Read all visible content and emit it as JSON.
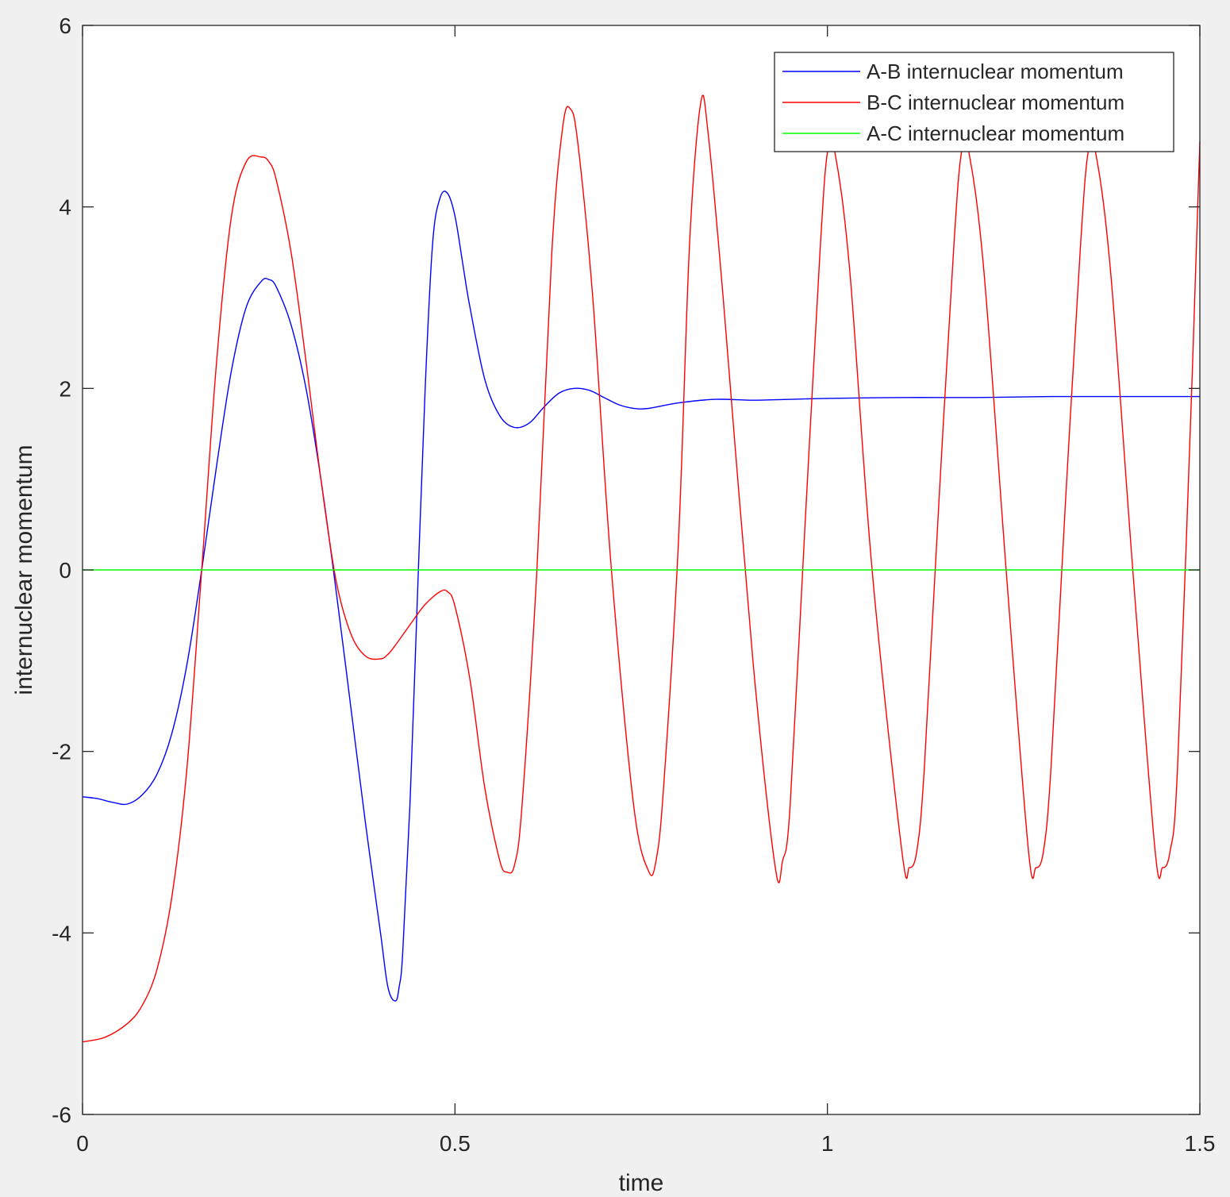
{
  "chart_data": {
    "type": "line",
    "title": "",
    "xlabel": "time",
    "ylabel": "internuclear momentum",
    "xlim": [
      0,
      1.5
    ],
    "ylim": [
      -6,
      6
    ],
    "xticks": [
      0,
      0.5,
      1,
      1.5
    ],
    "xtick_labels": [
      "0",
      "0.5",
      "1",
      "1.5"
    ],
    "yticks": [
      -6,
      -4,
      -2,
      0,
      2,
      4,
      6
    ],
    "ytick_labels": [
      "-6",
      "-4",
      "-2",
      "0",
      "2",
      "4",
      "6"
    ],
    "grid": false,
    "legend_position": "top-right",
    "series": [
      {
        "name": "A-B internuclear momentum",
        "color": "#0000ff",
        "x": [
          0,
          0.02,
          0.04,
          0.06,
          0.08,
          0.1,
          0.12,
          0.14,
          0.16,
          0.18,
          0.2,
          0.22,
          0.24,
          0.25,
          0.26,
          0.28,
          0.3,
          0.32,
          0.34,
          0.36,
          0.38,
          0.4,
          0.41,
          0.42,
          0.425,
          0.43,
          0.44,
          0.45,
          0.46,
          0.47,
          0.48,
          0.49,
          0.5,
          0.51,
          0.52,
          0.54,
          0.56,
          0.58,
          0.6,
          0.62,
          0.64,
          0.66,
          0.68,
          0.7,
          0.72,
          0.74,
          0.76,
          0.8,
          0.85,
          0.9,
          0.95,
          1.0,
          1.1,
          1.2,
          1.3,
          1.4,
          1.5
        ],
        "y": [
          -2.5,
          -2.52,
          -2.56,
          -2.58,
          -2.48,
          -2.25,
          -1.8,
          -1.05,
          0.0,
          1.15,
          2.2,
          2.9,
          3.18,
          3.2,
          3.12,
          2.7,
          2.0,
          1.0,
          -0.2,
          -1.5,
          -2.8,
          -4.0,
          -4.6,
          -4.75,
          -4.6,
          -4.2,
          -2.5,
          -0.2,
          2.0,
          3.6,
          4.1,
          4.15,
          3.9,
          3.4,
          2.9,
          2.1,
          1.7,
          1.57,
          1.62,
          1.8,
          1.95,
          2.0,
          1.98,
          1.9,
          1.82,
          1.78,
          1.78,
          1.84,
          1.88,
          1.87,
          1.88,
          1.89,
          1.9,
          1.9,
          1.91,
          1.91,
          1.91
        ]
      },
      {
        "name": "B-C internuclear momentum",
        "color": "#ff0000",
        "x": [
          0,
          0.03,
          0.06,
          0.08,
          0.1,
          0.12,
          0.14,
          0.16,
          0.18,
          0.2,
          0.22,
          0.24,
          0.25,
          0.26,
          0.28,
          0.3,
          0.32,
          0.34,
          0.36,
          0.38,
          0.4,
          0.41,
          0.42,
          0.44,
          0.46,
          0.48,
          0.49,
          0.5,
          0.52,
          0.54,
          0.56,
          0.57,
          0.58,
          0.59,
          0.61,
          0.63,
          0.645,
          0.655,
          0.665,
          0.685,
          0.71,
          0.74,
          0.76,
          0.77,
          0.78,
          0.8,
          0.815,
          0.83,
          0.84,
          0.86,
          0.9,
          0.93,
          0.94,
          0.95,
          0.97,
          0.99,
          1.0,
          1.01,
          1.03,
          1.06,
          1.1,
          1.11,
          1.12,
          1.13,
          1.15,
          1.17,
          1.18,
          1.19,
          1.21,
          1.24,
          1.27,
          1.28,
          1.29,
          1.3,
          1.32,
          1.34,
          1.35,
          1.36,
          1.38,
          1.41,
          1.44,
          1.45,
          1.46,
          1.47,
          1.49,
          1.5
        ],
        "y": [
          -5.2,
          -5.15,
          -5.0,
          -4.8,
          -4.4,
          -3.6,
          -2.2,
          0.0,
          2.3,
          3.9,
          4.5,
          4.55,
          4.5,
          4.3,
          3.5,
          2.3,
          1.0,
          -0.1,
          -0.7,
          -0.95,
          -0.98,
          -0.93,
          -0.83,
          -0.6,
          -0.38,
          -0.24,
          -0.24,
          -0.4,
          -1.2,
          -2.4,
          -3.2,
          -3.33,
          -3.25,
          -2.6,
          0.0,
          3.5,
          4.9,
          5.08,
          4.7,
          3.0,
          0.0,
          -2.6,
          -3.32,
          -3.2,
          -2.4,
          0.3,
          3.6,
          5.15,
          4.8,
          3.0,
          -1.0,
          -3.28,
          -3.2,
          -2.6,
          0.5,
          3.5,
          4.6,
          4.6,
          3.3,
          0.0,
          -3.1,
          -3.28,
          -3.1,
          -2.2,
          0.8,
          3.6,
          4.6,
          4.6,
          3.3,
          0.0,
          -3.1,
          -3.28,
          -3.1,
          -2.2,
          0.8,
          3.6,
          4.6,
          4.6,
          3.3,
          0.0,
          -3.1,
          -3.28,
          -3.1,
          -2.2,
          2.2,
          4.72
        ]
      },
      {
        "name": "A-C internuclear momentum",
        "color": "#00ff00",
        "x": [
          0,
          1.5
        ],
        "y": [
          0,
          0
        ]
      }
    ]
  }
}
